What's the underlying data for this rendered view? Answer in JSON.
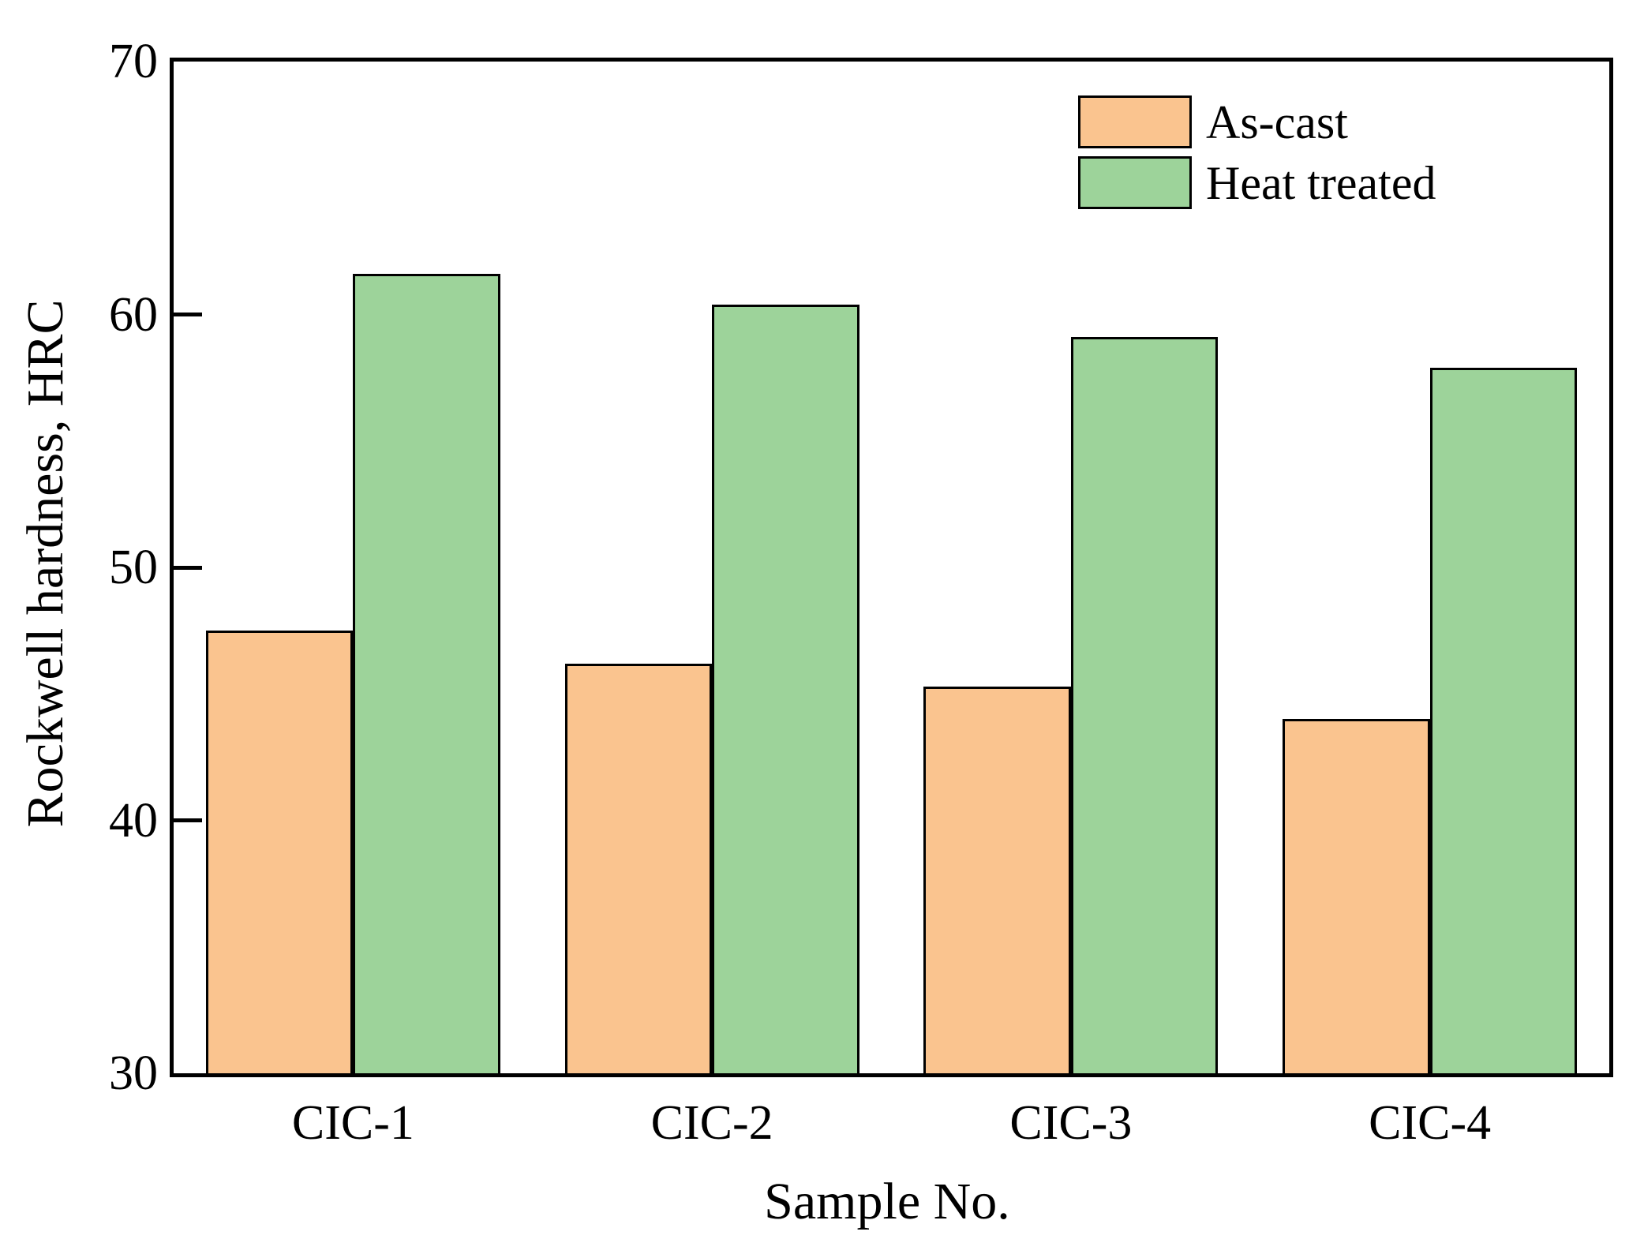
{
  "chart_data": {
    "type": "bar",
    "title": "",
    "xlabel": "Sample No.",
    "ylabel": "Rockwell hardness, HRC",
    "categories": [
      "CIC-1",
      "CIC-2",
      "CIC-3",
      "CIC-4"
    ],
    "series": [
      {
        "name": "As-cast",
        "color": "#FAC48F",
        "values": [
          47.5,
          46.2,
          45.3,
          44.0
        ]
      },
      {
        "name": "Heat treated",
        "color": "#9DD39A",
        "values": [
          61.6,
          60.4,
          59.1,
          57.9
        ]
      }
    ],
    "ylim": [
      30,
      70
    ],
    "yticks": [
      30,
      40,
      50,
      60,
      70
    ],
    "grid": false,
    "legend_position": "top-right",
    "bar_edge_color": "#000000",
    "axis_color": "#000000",
    "background_color": "#ffffff"
  }
}
